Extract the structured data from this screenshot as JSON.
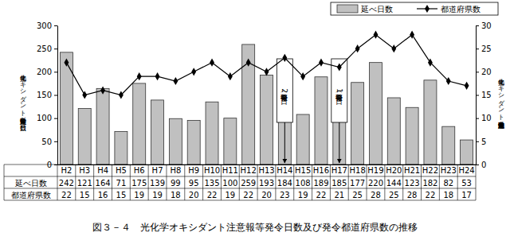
{
  "chart_data": {
    "type": "bar",
    "title": "図３－４　光化学オキシダント注意報等発令日数及び発令都道府県数の推移",
    "categories": [
      "H2",
      "H3",
      "H4",
      "H5",
      "H6",
      "H7",
      "H8",
      "H9",
      "H10",
      "H11",
      "H12",
      "H13",
      "H14",
      "H15",
      "H16",
      "H17",
      "H18",
      "H19",
      "H20",
      "H21",
      "H22",
      "H23",
      "H24"
    ],
    "series": [
      {
        "name": "延べ日数",
        "type": "bar",
        "color": "#c0c0c0",
        "values": [
          242,
          121,
          164,
          71,
          175,
          139,
          99,
          95,
          135,
          100,
          259,
          193,
          184,
          108,
          189,
          185,
          177,
          220,
          144,
          123,
          182,
          82,
          53
        ]
      },
      {
        "name": "都道府県数",
        "type": "line",
        "axis": "y2",
        "color": "#000000",
        "marker": "diamond",
        "values": [
          22,
          15,
          16,
          15,
          19,
          19,
          18,
          20,
          22,
          19,
          22,
          20,
          23,
          19,
          22,
          21,
          25,
          28,
          25,
          28,
          22,
          18,
          17
        ]
      }
    ],
    "ylabel": "光化学オキシダント注意報等発令延べ日数（日）",
    "y2label": "光化学オキシダント注意報発令都道府県数",
    "ylim": [
      0,
      300
    ],
    "yticks": [
      0,
      50,
      100,
      150,
      200,
      250,
      300
    ],
    "y2lim": [
      0,
      30
    ],
    "y2ticks": [
      0,
      5,
      10,
      15,
      20,
      25,
      30
    ],
    "legend": "upper right",
    "annotations": [
      {
        "text": "警報発令（2日）",
        "category": "H14"
      },
      {
        "text": "警報発令（1日）",
        "category": "H17"
      }
    ]
  }
}
